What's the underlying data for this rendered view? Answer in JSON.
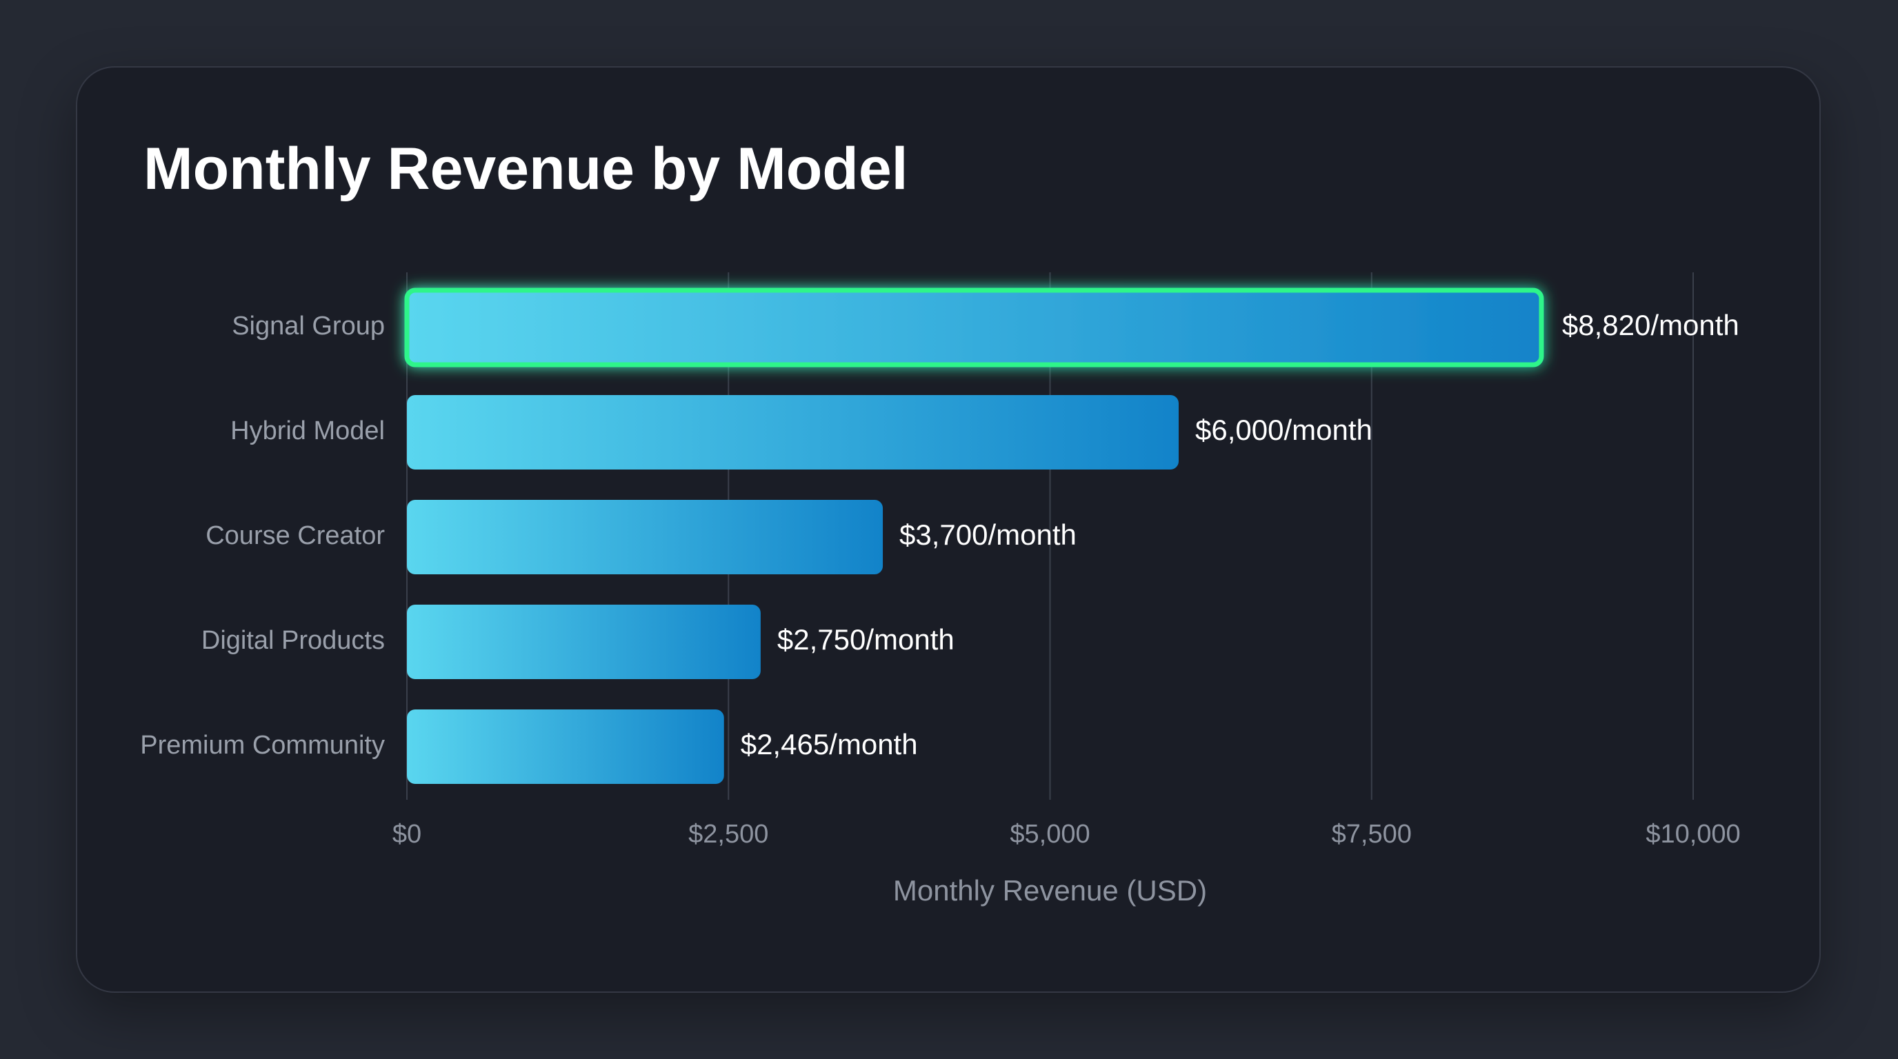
{
  "colors": {
    "background": "#252933",
    "card": "#1a1d26",
    "bar_start": "#5ad6ef",
    "bar_end": "#1283c9",
    "highlight_glow": "#2ef58a",
    "grid": "#3a3f4b"
  },
  "chart_data": {
    "type": "bar",
    "orientation": "horizontal",
    "title": "Monthly Revenue by Model",
    "xlabel": "Monthly Revenue (USD)",
    "ylabel": "",
    "xlim": [
      0,
      10000
    ],
    "grid": true,
    "categories": [
      "Signal Group",
      "Hybrid Model",
      "Course Creator",
      "Digital Products",
      "Premium Community"
    ],
    "values": [
      8820,
      6000,
      3700,
      2750,
      2465
    ],
    "value_labels": [
      "$8,820/month",
      "$6,000/month",
      "$3,700/month",
      "$2,750/month",
      "$2,465/month"
    ],
    "ticks": [
      0,
      2500,
      5000,
      7500,
      10000
    ],
    "tick_labels": [
      "$0",
      "$2,500",
      "$5,000",
      "$7,500",
      "$10,000"
    ],
    "highlighted_category": "Signal Group"
  }
}
